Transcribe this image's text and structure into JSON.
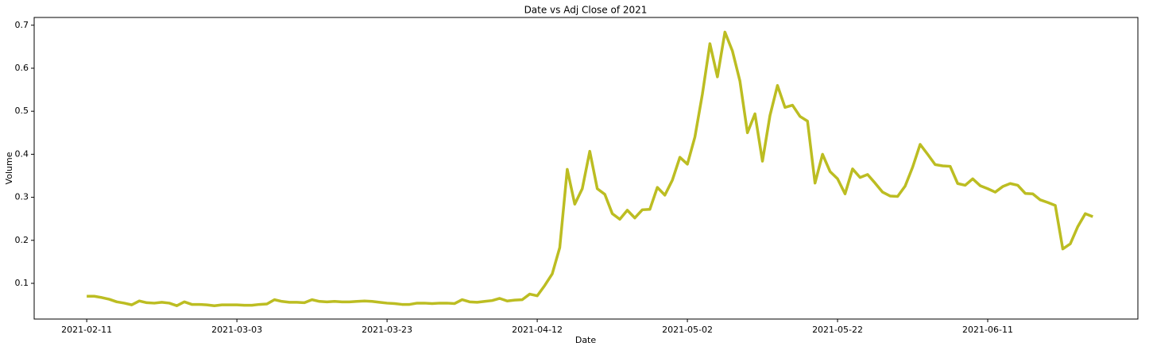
{
  "chart_data": {
    "type": "line",
    "title": "Date vs Adj Close of 2021",
    "xlabel": "Date",
    "ylabel": "Volume",
    "x": [
      "2021-02-11",
      "2021-02-12",
      "2021-02-13",
      "2021-02-14",
      "2021-02-15",
      "2021-02-16",
      "2021-02-17",
      "2021-02-18",
      "2021-02-19",
      "2021-02-20",
      "2021-02-21",
      "2021-02-22",
      "2021-02-23",
      "2021-02-24",
      "2021-02-25",
      "2021-02-26",
      "2021-02-27",
      "2021-02-28",
      "2021-03-01",
      "2021-03-02",
      "2021-03-03",
      "2021-03-04",
      "2021-03-05",
      "2021-03-06",
      "2021-03-07",
      "2021-03-08",
      "2021-03-09",
      "2021-03-10",
      "2021-03-11",
      "2021-03-12",
      "2021-03-13",
      "2021-03-14",
      "2021-03-15",
      "2021-03-16",
      "2021-03-17",
      "2021-03-18",
      "2021-03-19",
      "2021-03-20",
      "2021-03-21",
      "2021-03-22",
      "2021-03-23",
      "2021-03-24",
      "2021-03-25",
      "2021-03-26",
      "2021-03-27",
      "2021-03-28",
      "2021-03-29",
      "2021-03-30",
      "2021-03-31",
      "2021-04-01",
      "2021-04-02",
      "2021-04-03",
      "2021-04-04",
      "2021-04-05",
      "2021-04-06",
      "2021-04-07",
      "2021-04-08",
      "2021-04-09",
      "2021-04-10",
      "2021-04-11",
      "2021-04-12",
      "2021-04-13",
      "2021-04-14",
      "2021-04-15",
      "2021-04-16",
      "2021-04-17",
      "2021-04-18",
      "2021-04-19",
      "2021-04-20",
      "2021-04-21",
      "2021-04-22",
      "2021-04-23",
      "2021-04-24",
      "2021-04-25",
      "2021-04-26",
      "2021-04-27",
      "2021-04-28",
      "2021-04-29",
      "2021-04-30",
      "2021-05-01",
      "2021-05-02",
      "2021-05-03",
      "2021-05-04",
      "2021-05-05",
      "2021-05-06",
      "2021-05-07",
      "2021-05-08",
      "2021-05-09",
      "2021-05-10",
      "2021-05-11",
      "2021-05-12",
      "2021-05-13",
      "2021-05-14",
      "2021-05-15",
      "2021-05-16",
      "2021-05-17",
      "2021-05-18",
      "2021-05-19",
      "2021-05-20",
      "2021-05-21",
      "2021-05-22",
      "2021-05-23",
      "2021-05-24",
      "2021-05-25",
      "2021-05-26",
      "2021-05-27",
      "2021-05-28",
      "2021-05-29",
      "2021-05-30",
      "2021-05-31",
      "2021-06-01",
      "2021-06-02",
      "2021-06-03",
      "2021-06-04",
      "2021-06-05",
      "2021-06-06",
      "2021-06-07",
      "2021-06-08",
      "2021-06-09",
      "2021-06-10",
      "2021-06-11",
      "2021-06-12",
      "2021-06-13",
      "2021-06-14",
      "2021-06-15",
      "2021-06-16",
      "2021-06-17",
      "2021-06-18",
      "2021-06-19",
      "2021-06-20",
      "2021-06-21",
      "2021-06-22",
      "2021-06-23",
      "2021-06-24",
      "2021-06-25"
    ],
    "series": [
      {
        "name": "Adj Close",
        "color": "#bcbd22",
        "values": [
          0.07,
          0.07,
          0.067,
          0.063,
          0.057,
          0.054,
          0.05,
          0.059,
          0.055,
          0.054,
          0.056,
          0.054,
          0.048,
          0.057,
          0.051,
          0.051,
          0.05,
          0.048,
          0.05,
          0.05,
          0.05,
          0.049,
          0.049,
          0.051,
          0.052,
          0.062,
          0.058,
          0.056,
          0.056,
          0.055,
          0.062,
          0.058,
          0.057,
          0.058,
          0.057,
          0.057,
          0.058,
          0.059,
          0.058,
          0.056,
          0.054,
          0.053,
          0.051,
          0.051,
          0.054,
          0.054,
          0.053,
          0.054,
          0.054,
          0.053,
          0.062,
          0.057,
          0.056,
          0.058,
          0.06,
          0.065,
          0.059,
          0.061,
          0.062,
          0.075,
          0.071,
          0.095,
          0.122,
          0.183,
          0.365,
          0.284,
          0.32,
          0.407,
          0.32,
          0.307,
          0.262,
          0.249,
          0.27,
          0.252,
          0.271,
          0.272,
          0.323,
          0.305,
          0.34,
          0.393,
          0.377,
          0.44,
          0.54,
          0.657,
          0.58,
          0.684,
          0.64,
          0.57,
          0.45,
          0.494,
          0.384,
          0.49,
          0.56,
          0.509,
          0.514,
          0.488,
          0.477,
          0.333,
          0.4,
          0.36,
          0.343,
          0.308,
          0.366,
          0.346,
          0.353,
          0.333,
          0.312,
          0.303,
          0.302,
          0.326,
          0.37,
          0.423,
          0.4,
          0.376,
          0.373,
          0.372,
          0.332,
          0.328,
          0.343,
          0.327,
          0.32,
          0.312,
          0.325,
          0.332,
          0.328,
          0.309,
          0.308,
          0.294,
          0.288,
          0.281,
          0.18,
          0.192,
          0.232,
          0.262,
          0.255
        ]
      }
    ],
    "xlim": [
      "2021-02-04",
      "2021-07-01"
    ],
    "xticks": [
      "2021-02-11",
      "2021-03-03",
      "2021-03-23",
      "2021-04-12",
      "2021-05-02",
      "2021-05-22",
      "2021-06-11"
    ],
    "ylim": [
      0.017,
      0.718
    ],
    "yticks": [
      0.1,
      0.2,
      0.3,
      0.4,
      0.5,
      0.6,
      0.7
    ],
    "grid": false
  }
}
